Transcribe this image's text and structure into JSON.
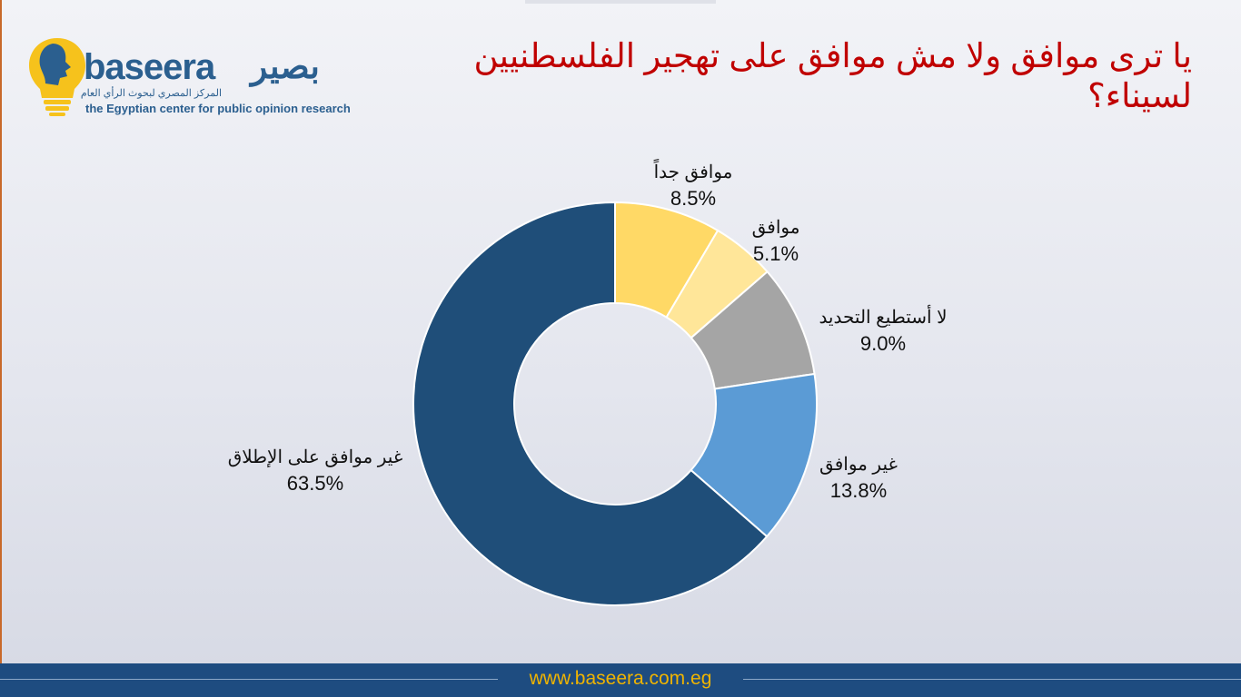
{
  "logo": {
    "wordmark": "baseera",
    "wordmark_ar": "بصير",
    "tagline_ar": "المركز المصري لبحوث الرأي العام",
    "tagline_en": "the Egyptian center for public opinion research"
  },
  "title": "يا ترى موافق ولا مش موافق على تهجير الفلسطنيين لسيناء؟",
  "footer": {
    "url": "www.baseera.com.eg"
  },
  "colors": {
    "title": "#c00000",
    "brand": "#2b5f8f",
    "footer_bg": "#1e4c80",
    "footer_text": "#f0b400"
  },
  "chart_data": {
    "type": "pie",
    "donut": true,
    "slices": [
      {
        "label": "موافق جداً",
        "value": 8.5,
        "display": "8.5%",
        "color": "#ffd966"
      },
      {
        "label": "موافق",
        "value": 5.1,
        "display": "5.1%",
        "color": "#ffe699"
      },
      {
        "label": "لا أستطيع التحديد",
        "value": 9.0,
        "display": "9.0%",
        "color": "#a5a5a5"
      },
      {
        "label": "غير موافق",
        "value": 13.8,
        "display": "13.8%",
        "color": "#5b9bd5"
      },
      {
        "label": "غير موافق على الإطلاق",
        "value": 63.5,
        "display": "63.5%",
        "color": "#1f4e79"
      }
    ]
  }
}
